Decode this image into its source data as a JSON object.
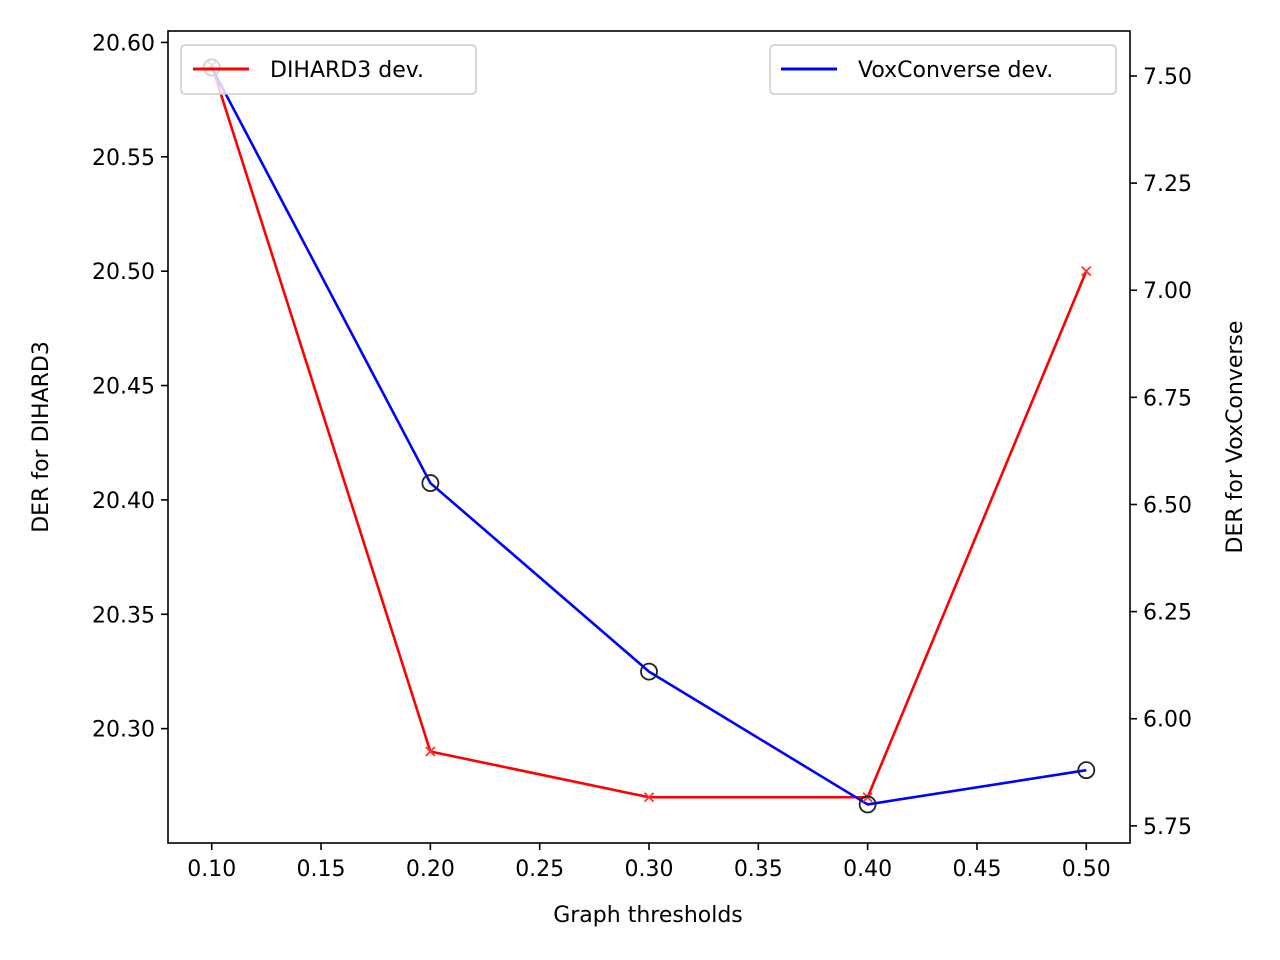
{
  "chart_data": {
    "type": "line",
    "title": "",
    "xlabel": "Graph thresholds",
    "ylabel_left": "DER for DIHARD3",
    "ylabel_right": "DER for VoxConverse",
    "x": [
      0.1,
      0.2,
      0.3,
      0.4,
      0.5
    ],
    "xlim": [
      0.08,
      0.52
    ],
    "ylim_left": [
      20.25,
      20.605
    ],
    "ylim_right": [
      5.71,
      7.605
    ],
    "x_ticks": [
      "0.10",
      "0.15",
      "0.20",
      "0.25",
      "0.30",
      "0.35",
      "0.40",
      "0.45",
      "0.50"
    ],
    "y_left_ticks": [
      "20.30",
      "20.35",
      "20.40",
      "20.45",
      "20.50",
      "20.55",
      "20.60"
    ],
    "y_right_ticks": [
      "5.75",
      "6.00",
      "6.25",
      "6.50",
      "6.75",
      "7.00",
      "7.25",
      "7.50"
    ],
    "series": [
      {
        "name": "DIHARD3 dev.",
        "axis": "left",
        "color": "#ff0000",
        "marker": "x",
        "values": [
          20.59,
          20.29,
          20.27,
          20.27,
          20.5
        ]
      },
      {
        "name": "VoxConverse dev.",
        "axis": "right",
        "color": "#0000ff",
        "marker": "o",
        "values": [
          7.52,
          6.55,
          6.11,
          5.8,
          5.88
        ]
      }
    ],
    "legends": [
      {
        "series": "DIHARD3 dev.",
        "position": "upper left"
      },
      {
        "series": "VoxConverse dev.",
        "position": "upper right"
      }
    ]
  }
}
